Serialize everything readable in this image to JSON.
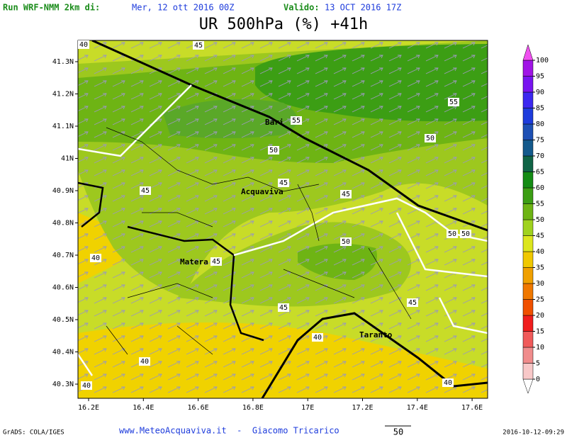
{
  "header": {
    "run_label": "Run WRF-NMM 2km di:",
    "run_date": "Mer, 12 ott 2016 00Z",
    "valid_label": "Valido:",
    "valid_date": "13 OCT 2016 17Z",
    "title": "UR 500hPa (%) +41h"
  },
  "map": {
    "lat_labels": [
      "41.3N",
      "41.2N",
      "41.1N",
      "41N",
      "40.9N",
      "40.8N",
      "40.7N",
      "40.6N",
      "40.5N",
      "40.4N",
      "40.3N"
    ],
    "lon_labels": [
      "16.2E",
      "16.4E",
      "16.6E",
      "16.8E",
      "17E",
      "17.2E",
      "17.4E",
      "17.6E"
    ],
    "places": [
      "Bari",
      "Acquaviva",
      "Matera",
      "Taranto"
    ],
    "contour_labels": [
      "40",
      "45",
      "55",
      "55",
      "50",
      "50",
      "45",
      "45",
      "45",
      "50",
      "50",
      "50",
      "40",
      "45",
      "45",
      "45",
      "40",
      "40",
      "40",
      "40"
    ]
  },
  "colorbar": {
    "levels": [
      0,
      5,
      10,
      15,
      20,
      25,
      30,
      35,
      40,
      45,
      50,
      55,
      60,
      65,
      70,
      75,
      80,
      85,
      90,
      95,
      100
    ],
    "colors": [
      "#ffffff",
      "#f8c8c8",
      "#f08c8c",
      "#f05a5a",
      "#f01e1e",
      "#f05000",
      "#f07800",
      "#f0a000",
      "#f0c800",
      "#dce61e",
      "#a0d21e",
      "#6eb414",
      "#3c9e14",
      "#148c14",
      "#106446",
      "#145a8c",
      "#1e50b4",
      "#1e3cdc",
      "#3c28f0",
      "#7814f0",
      "#a014e6",
      "#f050f0"
    ]
  },
  "footer": {
    "credit": "GrADS: COLA/IGES",
    "site": "www.MeteoAcquaviva.it  -  Giacomo Tricarico",
    "vector_reference": "50",
    "timestamp": "2016-10-12-09:29"
  }
}
